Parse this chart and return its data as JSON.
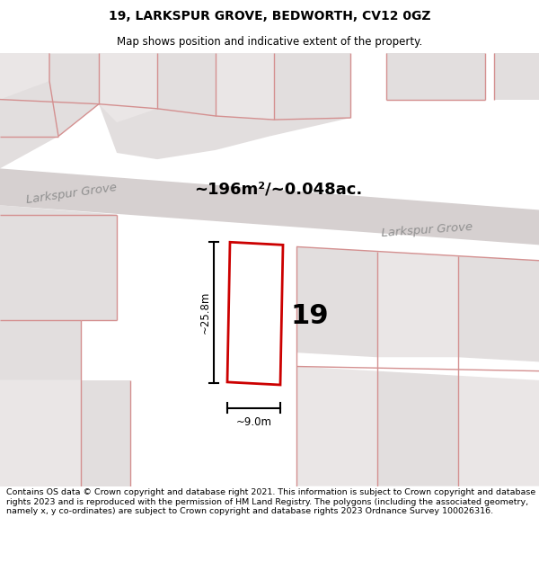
{
  "title": "19, LARKSPUR GROVE, BEDWORTH, CV12 0GZ",
  "subtitle": "Map shows position and indicative extent of the property.",
  "area_label": "~196m²/~0.048ac.",
  "number_label": "19",
  "dim_v_label": "~25.8m",
  "dim_h_label": "~9.0m",
  "street_left": "Larkspur Grove",
  "street_right": "Larkspur Grove",
  "footer": "Contains OS data © Crown copyright and database right 2021. This information is subject to Crown copyright and database rights 2023 and is reproduced with the permission of HM Land Registry. The polygons (including the associated geometry, namely x, y co-ordinates) are subject to Crown copyright and database rights 2023 Ordnance Survey 100026316.",
  "map_bg": "#f2f0f0",
  "road_fill": "#d6d0d0",
  "block_fill": "#e2dede",
  "block_fill2": "#eae6e6",
  "pink": "#d49090",
  "red": "#cc0000",
  "white": "#ffffff",
  "gray_text": "#909090",
  "title_fs": 10,
  "subtitle_fs": 8.5,
  "footer_fs": 6.8,
  "area_fs": 13,
  "num_fs": 22,
  "street_fs": 9.5,
  "dim_fs": 8.5
}
